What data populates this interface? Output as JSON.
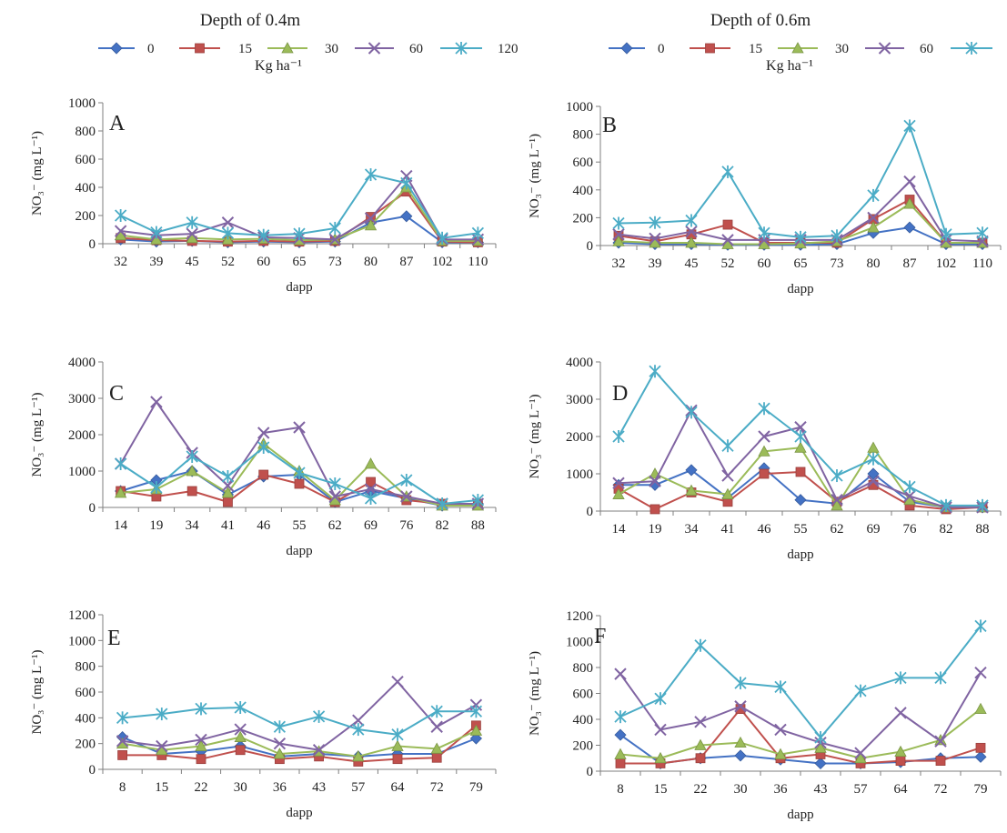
{
  "figure": {
    "headers": [
      {
        "id": "left",
        "title": "Depth of 0.4m"
      },
      {
        "id": "right",
        "title": "Depth of 0.6m"
      }
    ],
    "legend": {
      "unit": "Kg ha⁻¹",
      "entries": [
        {
          "label": "0",
          "marker": "diamond",
          "color": "#4472C4"
        },
        {
          "label": "15",
          "marker": "square",
          "color": "#C0504D"
        },
        {
          "label": "30",
          "marker": "triangle",
          "color": "#9BBB59"
        },
        {
          "label": "60",
          "marker": "x",
          "color": "#8064A2"
        },
        {
          "label": "120",
          "marker": "star",
          "color": "#4BACC6"
        }
      ]
    }
  },
  "chart_data": [
    {
      "panel": "A",
      "type": "line",
      "xlabel": "dapp",
      "ylabel": "NO₃⁻ (mg L⁻¹)",
      "ylim": [
        0,
        1000
      ],
      "yticks": [
        0,
        200,
        400,
        600,
        800,
        1000
      ],
      "categories": [
        "32",
        "39",
        "45",
        "52",
        "60",
        "65",
        "73",
        "80",
        "87",
        "102",
        "110"
      ],
      "series": [
        {
          "name": "0",
          "values": [
            30,
            15,
            20,
            10,
            15,
            10,
            15,
            150,
            195,
            10,
            10
          ]
        },
        {
          "name": "15",
          "values": [
            40,
            25,
            20,
            15,
            20,
            15,
            20,
            190,
            370,
            15,
            10
          ]
        },
        {
          "name": "30",
          "values": [
            60,
            30,
            40,
            30,
            35,
            25,
            30,
            130,
            400,
            20,
            20
          ]
        },
        {
          "name": "60",
          "values": [
            90,
            60,
            70,
            150,
            45,
            40,
            30,
            180,
            480,
            30,
            30
          ]
        },
        {
          "name": "120",
          "values": [
            200,
            80,
            150,
            75,
            60,
            70,
            110,
            490,
            430,
            40,
            75
          ]
        }
      ]
    },
    {
      "panel": "B",
      "type": "line",
      "xlabel": "dapp",
      "ylabel": "NO₃⁻ (mg L⁻¹)",
      "ylim": [
        0,
        1000
      ],
      "yticks": [
        0,
        200,
        400,
        600,
        800,
        1000
      ],
      "categories": [
        "32",
        "39",
        "45",
        "52",
        "60",
        "65",
        "73",
        "80",
        "87",
        "102",
        "110"
      ],
      "series": [
        {
          "name": "0",
          "values": [
            20,
            10,
            10,
            5,
            5,
            5,
            10,
            90,
            130,
            10,
            10
          ]
        },
        {
          "name": "15",
          "values": [
            70,
            30,
            80,
            150,
            20,
            20,
            20,
            190,
            330,
            20,
            20
          ]
        },
        {
          "name": "30",
          "values": [
            30,
            20,
            20,
            10,
            10,
            15,
            30,
            130,
            300,
            20,
            20
          ]
        },
        {
          "name": "60",
          "values": [
            80,
            50,
            100,
            40,
            40,
            40,
            40,
            200,
            460,
            40,
            30
          ]
        },
        {
          "name": "120",
          "values": [
            160,
            165,
            180,
            530,
            90,
            60,
            70,
            360,
            860,
            80,
            90
          ]
        }
      ]
    },
    {
      "panel": "C",
      "type": "line",
      "xlabel": "dapp",
      "ylabel": "NO₃⁻ (mg L⁻¹)",
      "ylim": [
        0,
        4000
      ],
      "yticks": [
        0,
        1000,
        2000,
        3000,
        4000
      ],
      "categories": [
        "14",
        "19",
        "34",
        "41",
        "46",
        "55",
        "62",
        "69",
        "76",
        "82",
        "88"
      ],
      "series": [
        {
          "name": "0",
          "values": [
            450,
            750,
            1000,
            350,
            850,
            900,
            150,
            450,
            250,
            50,
            100
          ]
        },
        {
          "name": "15",
          "values": [
            450,
            300,
            450,
            150,
            900,
            650,
            150,
            700,
            200,
            100,
            100
          ]
        },
        {
          "name": "30",
          "values": [
            400,
            500,
            1000,
            400,
            1750,
            1000,
            200,
            1200,
            300,
            50,
            50
          ]
        },
        {
          "name": "60",
          "values": [
            1200,
            2900,
            1500,
            600,
            2050,
            2200,
            300,
            500,
            300,
            100,
            100
          ]
        },
        {
          "name": "120",
          "values": [
            1200,
            550,
            1400,
            850,
            1650,
            950,
            650,
            250,
            750,
            100,
            200
          ]
        }
      ]
    },
    {
      "panel": "D",
      "type": "line",
      "xlabel": "dapp",
      "ylabel": "NO₃⁻ (mg L⁻¹)",
      "ylim": [
        0,
        4000
      ],
      "yticks": [
        0,
        1000,
        2000,
        3000,
        4000
      ],
      "categories": [
        "14",
        "19",
        "34",
        "41",
        "46",
        "55",
        "62",
        "69",
        "76",
        "82",
        "88"
      ],
      "series": [
        {
          "name": "0",
          "values": [
            700,
            700,
            1100,
            350,
            1150,
            300,
            200,
            1000,
            250,
            100,
            100
          ]
        },
        {
          "name": "15",
          "values": [
            600,
            50,
            500,
            250,
            1000,
            1050,
            250,
            700,
            150,
            50,
            100
          ]
        },
        {
          "name": "30",
          "values": [
            450,
            1000,
            550,
            450,
            1600,
            1700,
            150,
            1700,
            300,
            100,
            100
          ]
        },
        {
          "name": "60",
          "values": [
            750,
            800,
            2700,
            950,
            2000,
            2250,
            300,
            800,
            400,
            100,
            100
          ]
        },
        {
          "name": "120",
          "values": [
            2000,
            3750,
            2650,
            1750,
            2750,
            2000,
            950,
            1400,
            650,
            150,
            150
          ]
        }
      ]
    },
    {
      "panel": "E",
      "type": "line",
      "xlabel": "dapp",
      "ylabel": "NO₃⁻ (mg L⁻¹)",
      "ylim": [
        0,
        1200
      ],
      "yticks": [
        0,
        200,
        400,
        600,
        800,
        1000,
        1200
      ],
      "categories": [
        "8",
        "15",
        "22",
        "30",
        "36",
        "43",
        "57",
        "64",
        "72",
        "79"
      ],
      "series": [
        {
          "name": "0",
          "values": [
            250,
            120,
            140,
            180,
            100,
            120,
            100,
            120,
            120,
            240
          ]
        },
        {
          "name": "15",
          "values": [
            110,
            110,
            80,
            150,
            80,
            100,
            60,
            80,
            90,
            340
          ]
        },
        {
          "name": "30",
          "values": [
            200,
            150,
            180,
            250,
            120,
            140,
            100,
            180,
            160,
            300
          ]
        },
        {
          "name": "60",
          "values": [
            220,
            180,
            230,
            310,
            200,
            150,
            380,
            680,
            330,
            500
          ]
        },
        {
          "name": "120",
          "values": [
            400,
            430,
            470,
            480,
            330,
            410,
            310,
            270,
            450,
            450
          ]
        }
      ]
    },
    {
      "panel": "F",
      "type": "line",
      "xlabel": "dapp",
      "ylabel": "NO₃⁻ (mg L⁻¹)",
      "ylim": [
        0,
        1200
      ],
      "yticks": [
        0,
        200,
        400,
        600,
        800,
        1000,
        1200
      ],
      "categories": [
        "8",
        "15",
        "22",
        "30",
        "36",
        "43",
        "57",
        "64",
        "72",
        "79"
      ],
      "series": [
        {
          "name": "0",
          "values": [
            280,
            60,
            100,
            120,
            90,
            60,
            60,
            70,
            100,
            110
          ]
        },
        {
          "name": "15",
          "values": [
            60,
            60,
            100,
            480,
            100,
            130,
            60,
            80,
            80,
            180
          ]
        },
        {
          "name": "30",
          "values": [
            130,
            100,
            200,
            220,
            130,
            180,
            100,
            150,
            240,
            480
          ]
        },
        {
          "name": "60",
          "values": [
            750,
            320,
            380,
            500,
            320,
            220,
            140,
            450,
            230,
            760
          ]
        },
        {
          "name": "120",
          "values": [
            420,
            560,
            970,
            680,
            650,
            260,
            620,
            720,
            720,
            1120
          ]
        }
      ]
    }
  ]
}
